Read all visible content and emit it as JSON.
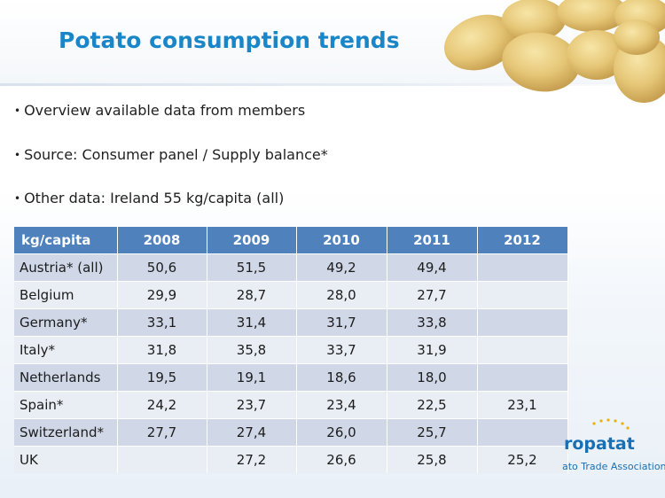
{
  "slide": {
    "title": "Potato consumption trends",
    "bullets": [
      "Overview available data from members",
      "Source: Consumer panel / Supply balance*",
      "Other data: Ireland 55 kg/capita (all)"
    ]
  },
  "table": {
    "headers": [
      "kg/capita",
      "2008",
      "2009",
      "2010",
      "2011",
      "2012"
    ],
    "rows": [
      [
        "Austria* (all)",
        "50,6",
        "51,5",
        "49,2",
        "49,4",
        ""
      ],
      [
        "Belgium",
        "29,9",
        "28,7",
        "28,0",
        "27,7",
        ""
      ],
      [
        "Germany*",
        "33,1",
        "31,4",
        "31,7",
        "33,8",
        ""
      ],
      [
        "Italy*",
        "31,8",
        "35,8",
        "33,7",
        "31,9",
        ""
      ],
      [
        "Netherlands",
        "19,5",
        "19,1",
        "18,6",
        "18,0",
        ""
      ],
      [
        "Spain*",
        "24,2",
        "23,7",
        "23,4",
        "22,5",
        "23,1"
      ],
      [
        "Switzerland*",
        "27,7",
        "27,4",
        "26,0",
        "25,7",
        ""
      ],
      [
        "UK",
        "",
        "27,2",
        "26,6",
        "25,8",
        "25,2"
      ]
    ]
  },
  "logo": {
    "name": "ropatat",
    "tagline": "ato Trade Association"
  },
  "colors": {
    "title": "#1a86c8",
    "table_header": "#4f81bd",
    "row_odd": "#d0d8e8",
    "row_even": "#e9edf4",
    "logo": "#1a6fb3"
  }
}
